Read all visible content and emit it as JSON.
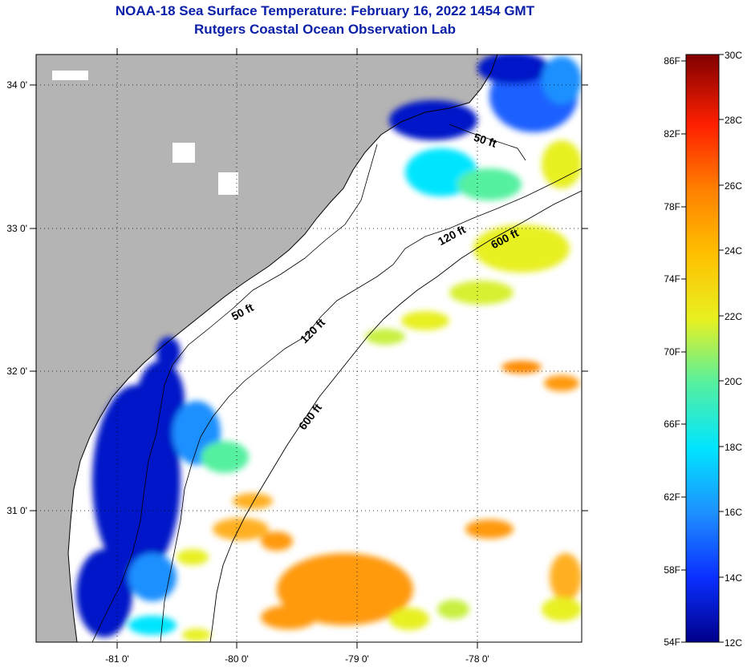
{
  "header": {
    "title": "NOAA-18 Sea Surface Temperature:  February 16, 2022 1454 GMT",
    "subtitle": "Rutgers Coastal Ocean Observation Lab"
  },
  "axes": {
    "lon_labels": [
      "-81 0'",
      "-80 0'",
      "-79 0'",
      "-78 0'"
    ],
    "lat_labels": [
      "34 0'",
      "33 0'",
      "32 0'",
      "31 0'"
    ]
  },
  "contours": {
    "c50a": "50 ft",
    "c50b": "50 ft",
    "c120a": "120 ft",
    "c120b": "120 ft",
    "c600a": "600 ft",
    "c600b": "600 ft"
  },
  "colorbar": {
    "fahrenheit": [
      "86F",
      "82F",
      "78F",
      "74F",
      "70F",
      "66F",
      "62F",
      "58F",
      "54F"
    ],
    "celsius": [
      "30C",
      "28C",
      "26C",
      "24C",
      "22C",
      "20C",
      "18C",
      "16C",
      "14C",
      "12C"
    ],
    "colors": {
      "c12": "#00008a",
      "c14": "#0a2fff",
      "c16": "#1e90ff",
      "c18": "#00e5ff",
      "c20": "#55f0a0",
      "c22": "#e8f020",
      "c24": "#ffc000",
      "c26": "#ff8000",
      "c28": "#ff2000",
      "c30": "#800000"
    }
  },
  "colors": {
    "land": "#b4b4b4",
    "ocean_nodata": "#ffffff",
    "cold_water": "#0018c8",
    "warm_water": "#ff9a10"
  }
}
